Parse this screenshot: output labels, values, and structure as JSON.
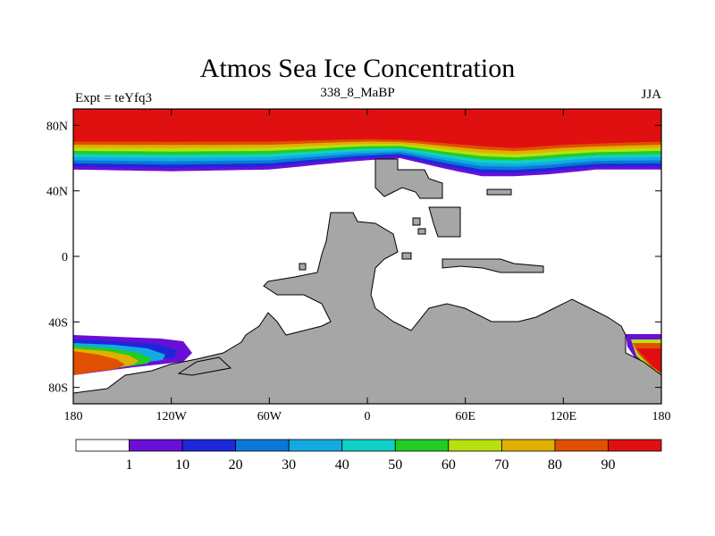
{
  "chart_data": {
    "type": "heatmap",
    "title": "Atmos Sea Ice Concentration",
    "subtitle_left": "Expt = teYfq3",
    "subtitle_center": "338_8_MaBP",
    "subtitle_right": "JJA",
    "x_ticks": [
      "180",
      "120W",
      "60W",
      "0",
      "60E",
      "120E",
      "180"
    ],
    "y_ticks": [
      "80N",
      "40N",
      "0",
      "40S",
      "80S"
    ],
    "xlim": [
      -180,
      180
    ],
    "ylim": [
      -90,
      90
    ],
    "colorbar": {
      "labels": [
        "1",
        "10",
        "20",
        "30",
        "40",
        "50",
        "60",
        "70",
        "80",
        "90"
      ],
      "colors": [
        "#ffffff",
        "#6a0fd8",
        "#1c28d8",
        "#0a78d8",
        "#12aae0",
        "#10d0c8",
        "#22cc22",
        "#b8e010",
        "#e0b000",
        "#e05000",
        "#e01010"
      ]
    },
    "land_color": "#a6a6a6",
    "north_ice_edge_lat": [
      [
        -180,
        53
      ],
      [
        -120,
        52
      ],
      [
        -60,
        53
      ],
      [
        -10,
        58
      ],
      [
        20,
        60
      ],
      [
        50,
        53
      ],
      [
        70,
        49
      ],
      [
        90,
        49
      ],
      [
        110,
        50
      ],
      [
        140,
        53
      ],
      [
        180,
        53
      ]
    ],
    "north_ice_full_lat": [
      [
        -180,
        72
      ],
      [
        -120,
        72
      ],
      [
        -60,
        72
      ],
      [
        0,
        73
      ],
      [
        30,
        72
      ],
      [
        60,
        70
      ],
      [
        90,
        68
      ],
      [
        120,
        70
      ],
      [
        150,
        71
      ],
      [
        180,
        72
      ]
    ]
  }
}
